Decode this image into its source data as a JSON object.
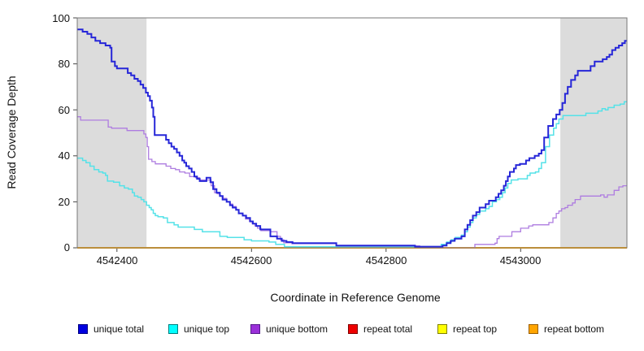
{
  "figure": {
    "xlabel": "Coordinate in Reference Genome",
    "ylabel": "Read Coverage Depth",
    "x_ticks": [
      "4542400",
      "4542600",
      "4542800",
      "4543000"
    ],
    "y_ticks": [
      "0",
      "20",
      "40",
      "60",
      "80",
      "100"
    ]
  },
  "legend": {
    "items": [
      {
        "label": "unique total",
        "fill": "#0000e0",
        "border": "#000080"
      },
      {
        "label": "unique top",
        "fill": "#00ffff",
        "border": "#007f7f"
      },
      {
        "label": "unique bottom",
        "fill": "#9b30d9",
        "border": "#551a8b"
      },
      {
        "label": "repeat total",
        "fill": "#ee0000",
        "border": "#800000"
      },
      {
        "label": "repeat top",
        "fill": "#ffff00",
        "border": "#808000"
      },
      {
        "label": "repeat bottom",
        "fill": "#ffa500",
        "border": "#995e00"
      }
    ]
  },
  "chart_data": {
    "type": "line",
    "subtype": "step-after",
    "title": "",
    "xlabel": "Coordinate in Reference Genome",
    "ylabel": "Read Coverage Depth",
    "xlim": [
      4542341,
      4543158
    ],
    "ylim": [
      0,
      100
    ],
    "x_ticks": [
      4542400,
      4542600,
      4542800,
      4543000
    ],
    "y_ticks": [
      0,
      20,
      40,
      60,
      80,
      100
    ],
    "grid": false,
    "legend_position": "bottom",
    "shade_color": "#dcdcdc",
    "shaded_regions": [
      {
        "from": 4542341,
        "to": 4542444
      },
      {
        "from": 4543059,
        "to": 4543158
      }
    ],
    "series": [
      {
        "id": "repeat-total",
        "name": "repeat total",
        "color": "#dd0000",
        "width": 1,
        "points": [
          [
            4542341,
            0
          ],
          [
            4543158,
            0
          ]
        ]
      },
      {
        "id": "repeat-top",
        "name": "repeat top",
        "color": "#f2f20c",
        "width": 1,
        "points": [
          [
            4542341,
            0
          ],
          [
            4543158,
            0
          ]
        ]
      },
      {
        "id": "repeat-bottom",
        "name": "repeat bottom",
        "color": "#ffa500",
        "width": 2,
        "points": [
          [
            4542341,
            0
          ],
          [
            4543158,
            0
          ]
        ]
      },
      {
        "id": "unique-top",
        "name": "unique top",
        "color": "#55e2e8",
        "width": 1.5,
        "points": [
          [
            4542341,
            39
          ],
          [
            4542349,
            38
          ],
          [
            4542354,
            37
          ],
          [
            4542360,
            35.5
          ],
          [
            4542366,
            34
          ],
          [
            4542373,
            33
          ],
          [
            4542379,
            32.5
          ],
          [
            4542383,
            31.5
          ],
          [
            4542386,
            29
          ],
          [
            4542395,
            28.5
          ],
          [
            4542404,
            27
          ],
          [
            4542411,
            26
          ],
          [
            4542417,
            25.5
          ],
          [
            4542423,
            24
          ],
          [
            4542426,
            22.5
          ],
          [
            4542431,
            22
          ],
          [
            4542436,
            21
          ],
          [
            4542440,
            20
          ],
          [
            4542444,
            18.5
          ],
          [
            4542448,
            17.5
          ],
          [
            4542451,
            16.5
          ],
          [
            4542454,
            15
          ],
          [
            4542457,
            14
          ],
          [
            4542461,
            13.5
          ],
          [
            4542469,
            13
          ],
          [
            4542475,
            11
          ],
          [
            4542485,
            10
          ],
          [
            4542491,
            9
          ],
          [
            4542515,
            8
          ],
          [
            4542527,
            7
          ],
          [
            4542553,
            5
          ],
          [
            4542564,
            4.5
          ],
          [
            4542589,
            3.5
          ],
          [
            4542600,
            3
          ],
          [
            4542626,
            2.5
          ],
          [
            4542636,
            1.5
          ],
          [
            4542649,
            0.5
          ],
          [
            4542882,
            1.5
          ],
          [
            4542890,
            2.5
          ],
          [
            4542897,
            3.5
          ],
          [
            4542903,
            4.5
          ],
          [
            4542912,
            5.5
          ],
          [
            4542917,
            7
          ],
          [
            4542921,
            9
          ],
          [
            4542925,
            11
          ],
          [
            4542929,
            13
          ],
          [
            4542934,
            14.5
          ],
          [
            4542939,
            16
          ],
          [
            4542948,
            17
          ],
          [
            4542953,
            18
          ],
          [
            4542958,
            20
          ],
          [
            4542964,
            21
          ],
          [
            4542969,
            22
          ],
          [
            4542973,
            24
          ],
          [
            4542977,
            26
          ],
          [
            4542981,
            28
          ],
          [
            4542986,
            29.5
          ],
          [
            4542996,
            30
          ],
          [
            4543010,
            31.5
          ],
          [
            4543014,
            32.5
          ],
          [
            4543022,
            33
          ],
          [
            4543027,
            34.5
          ],
          [
            4543031,
            37
          ],
          [
            4543037,
            44
          ],
          [
            4543043,
            49
          ],
          [
            4543049,
            52
          ],
          [
            4543053,
            54
          ],
          [
            4543057,
            56
          ],
          [
            4543063,
            57.5
          ],
          [
            4543097,
            58.5
          ],
          [
            4543115,
            59.5
          ],
          [
            4543121,
            60.5
          ],
          [
            4543126,
            60
          ],
          [
            4543130,
            61
          ],
          [
            4543139,
            62
          ],
          [
            4543148,
            62.5
          ],
          [
            4543154,
            63.5
          ]
        ]
      },
      {
        "id": "unique-bottom",
        "name": "unique bottom",
        "color": "#ae7ce0",
        "width": 1.3,
        "points": [
          [
            4542341,
            57
          ],
          [
            4542346,
            55.5
          ],
          [
            4542387,
            52.5
          ],
          [
            4542392,
            52
          ],
          [
            4542415,
            51
          ],
          [
            4542440,
            49.5
          ],
          [
            4542443,
            48
          ],
          [
            4542445,
            44
          ],
          [
            4542447,
            38.5
          ],
          [
            4542452,
            37.5
          ],
          [
            4542457,
            36.5
          ],
          [
            4542473,
            35.5
          ],
          [
            4542480,
            34.5
          ],
          [
            4542487,
            34
          ],
          [
            4542493,
            33
          ],
          [
            4542501,
            32.5
          ],
          [
            4542508,
            31
          ],
          [
            4542517,
            30.5
          ],
          [
            4542523,
            29.5
          ],
          [
            4542540,
            27
          ],
          [
            4542545,
            24
          ],
          [
            4542549,
            23.5
          ],
          [
            4542553,
            22.5
          ],
          [
            4542558,
            21.5
          ],
          [
            4542563,
            20
          ],
          [
            4542568,
            19
          ],
          [
            4542572,
            18
          ],
          [
            4542577,
            16.5
          ],
          [
            4542581,
            15
          ],
          [
            4542587,
            14
          ],
          [
            4542591,
            12.5
          ],
          [
            4542597,
            11.5
          ],
          [
            4542601,
            10.5
          ],
          [
            4542605,
            9.5
          ],
          [
            4542609,
            8.5
          ],
          [
            4542614,
            7.5
          ],
          [
            4542628,
            7
          ],
          [
            4542638,
            5
          ],
          [
            4542643,
            3.5
          ],
          [
            4542648,
            2.2
          ],
          [
            4542660,
            1.8
          ],
          [
            4542726,
            0.8
          ],
          [
            4542850,
            0
          ],
          [
            4542932,
            1.5
          ],
          [
            4542962,
            2
          ],
          [
            4542965,
            4
          ],
          [
            4542968,
            5
          ],
          [
            4542987,
            7
          ],
          [
            4543000,
            8.5
          ],
          [
            4543012,
            9.5
          ],
          [
            4543018,
            10
          ],
          [
            4543042,
            11
          ],
          [
            4543048,
            13
          ],
          [
            4543053,
            15
          ],
          [
            4543057,
            16
          ],
          [
            4543061,
            17
          ],
          [
            4543066,
            17.5
          ],
          [
            4543070,
            18.5
          ],
          [
            4543077,
            19.5
          ],
          [
            4543081,
            21
          ],
          [
            4543089,
            22.5
          ],
          [
            4543119,
            23
          ],
          [
            4543124,
            22
          ],
          [
            4543129,
            23
          ],
          [
            4543139,
            25
          ],
          [
            4543146,
            26.5
          ],
          [
            4543152,
            27
          ]
        ]
      },
      {
        "id": "unique-total",
        "name": "unique total",
        "color": "#2626d8",
        "width": 2,
        "points": [
          [
            4542341,
            95
          ],
          [
            4542349,
            94
          ],
          [
            4542356,
            93
          ],
          [
            4542362,
            91.5
          ],
          [
            4542368,
            90
          ],
          [
            4542375,
            89
          ],
          [
            4542383,
            88
          ],
          [
            4542390,
            87
          ],
          [
            4542392,
            81
          ],
          [
            4542397,
            79
          ],
          [
            4542400,
            78
          ],
          [
            4542416,
            76
          ],
          [
            4542421,
            75
          ],
          [
            4542426,
            73.5
          ],
          [
            4542431,
            72.5
          ],
          [
            4542435,
            71
          ],
          [
            4542439,
            69.5
          ],
          [
            4542443,
            67.5
          ],
          [
            4542446,
            66
          ],
          [
            4542449,
            64
          ],
          [
            4542452,
            61
          ],
          [
            4542454,
            57
          ],
          [
            4542456,
            49
          ],
          [
            4542473,
            47
          ],
          [
            4542477,
            45.5
          ],
          [
            4542481,
            44
          ],
          [
            4542485,
            43
          ],
          [
            4542489,
            41.5
          ],
          [
            4542493,
            40
          ],
          [
            4542497,
            38
          ],
          [
            4542500,
            37
          ],
          [
            4542503,
            35.5
          ],
          [
            4542507,
            34.5
          ],
          [
            4542511,
            33
          ],
          [
            4542515,
            31
          ],
          [
            4542519,
            30
          ],
          [
            4542523,
            29
          ],
          [
            4542533,
            30.5
          ],
          [
            4542539,
            28.5
          ],
          [
            4542543,
            25.5
          ],
          [
            4542548,
            24
          ],
          [
            4542553,
            22.5
          ],
          [
            4542557,
            21
          ],
          [
            4542563,
            20
          ],
          [
            4542568,
            18.5
          ],
          [
            4542572,
            17.5
          ],
          [
            4542577,
            16.5
          ],
          [
            4542581,
            15
          ],
          [
            4542587,
            14
          ],
          [
            4542592,
            13
          ],
          [
            4542598,
            11.5
          ],
          [
            4542602,
            10.5
          ],
          [
            4542607,
            9.5
          ],
          [
            4542613,
            8
          ],
          [
            4542628,
            5
          ],
          [
            4542638,
            4
          ],
          [
            4542645,
            3
          ],
          [
            4542652,
            2.5
          ],
          [
            4542661,
            2
          ],
          [
            4542726,
            1
          ],
          [
            4542843,
            0.5
          ],
          [
            4542884,
            1
          ],
          [
            4542890,
            2
          ],
          [
            4542896,
            3
          ],
          [
            4542902,
            4
          ],
          [
            4542912,
            5
          ],
          [
            4542917,
            8
          ],
          [
            4542921,
            10
          ],
          [
            4542925,
            12
          ],
          [
            4542929,
            14
          ],
          [
            4542934,
            15.5
          ],
          [
            4542939,
            17.5
          ],
          [
            4542948,
            19
          ],
          [
            4542953,
            20.5
          ],
          [
            4542963,
            22
          ],
          [
            4542967,
            23.5
          ],
          [
            4542971,
            25
          ],
          [
            4542975,
            27
          ],
          [
            4542978,
            29
          ],
          [
            4542981,
            31
          ],
          [
            4542984,
            33
          ],
          [
            4542990,
            34.5
          ],
          [
            4542993,
            36
          ],
          [
            4542999,
            36.5
          ],
          [
            4543008,
            38
          ],
          [
            4543013,
            39
          ],
          [
            4543021,
            40
          ],
          [
            4543027,
            41
          ],
          [
            4543031,
            42.5
          ],
          [
            4543035,
            48
          ],
          [
            4543041,
            53
          ],
          [
            4543048,
            56
          ],
          [
            4543053,
            58
          ],
          [
            4543058,
            60
          ],
          [
            4543062,
            63
          ],
          [
            4543066,
            67
          ],
          [
            4543070,
            70
          ],
          [
            4543075,
            73
          ],
          [
            4543081,
            75
          ],
          [
            4543085,
            77
          ],
          [
            4543104,
            79
          ],
          [
            4543110,
            81
          ],
          [
            4543122,
            82
          ],
          [
            4543128,
            83
          ],
          [
            4543132,
            84
          ],
          [
            4543136,
            86
          ],
          [
            4543141,
            87
          ],
          [
            4543146,
            88
          ],
          [
            4543151,
            89
          ],
          [
            4543155,
            90
          ]
        ]
      }
    ]
  }
}
